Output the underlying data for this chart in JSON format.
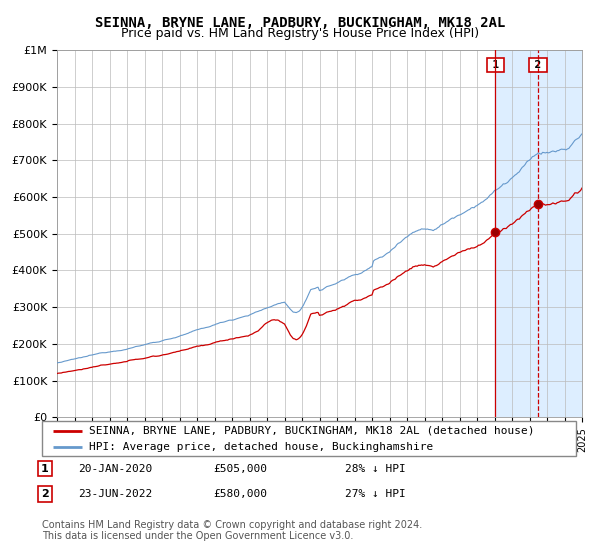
{
  "title": "SEINNA, BRYNE LANE, PADBURY, BUCKINGHAM, MK18 2AL",
  "subtitle": "Price paid vs. HM Land Registry's House Price Index (HPI)",
  "legend_label_red": "SEINNA, BRYNE LANE, PADBURY, BUCKINGHAM, MK18 2AL (detached house)",
  "legend_label_blue": "HPI: Average price, detached house, Buckinghamshire",
  "annotation1_label": "1",
  "annotation1_date": "20-JAN-2020",
  "annotation1_price": "£505,000",
  "annotation1_hpi": "28% ↓ HPI",
  "annotation1_year": 2020.05,
  "annotation1_value": 505000,
  "annotation2_label": "2",
  "annotation2_date": "23-JUN-2022",
  "annotation2_price": "£580,000",
  "annotation2_hpi": "27% ↓ HPI",
  "annotation2_year": 2022.48,
  "annotation2_value": 580000,
  "xmin": 1995,
  "xmax": 2025,
  "ymin": 0,
  "ymax": 1000000,
  "yticks": [
    0,
    100000,
    200000,
    300000,
    400000,
    500000,
    600000,
    700000,
    800000,
    900000,
    1000000
  ],
  "ytick_labels": [
    "£0",
    "£100K",
    "£200K",
    "£300K",
    "£400K",
    "£500K",
    "£600K",
    "£700K",
    "£800K",
    "£900K",
    "£1M"
  ],
  "red_color": "#cc0000",
  "blue_color": "#6699cc",
  "highlight_bg": "#ddeeff",
  "footer_text": "Contains HM Land Registry data © Crown copyright and database right 2024.\nThis data is licensed under the Open Government Licence v3.0.",
  "title_fontsize": 10,
  "subtitle_fontsize": 9,
  "tick_fontsize": 8,
  "legend_fontsize": 8,
  "footer_fontsize": 7
}
